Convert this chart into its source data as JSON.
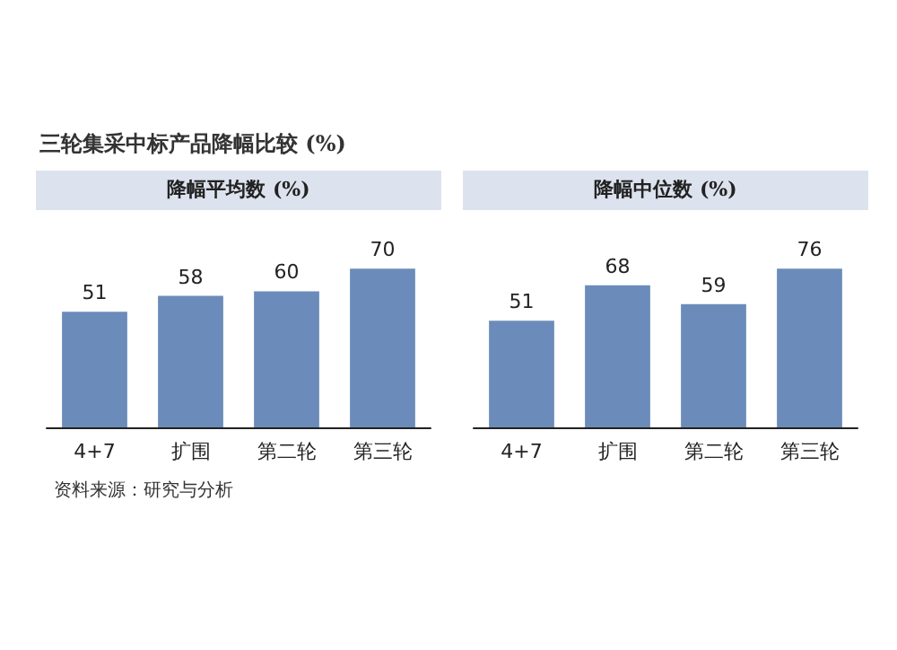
{
  "chart_data": [
    {
      "type": "bar",
      "title": "降幅平均数 (%)",
      "categories": [
        "4+7",
        "扩围",
        "第二轮",
        "第三轮"
      ],
      "values": [
        51,
        58,
        60,
        70
      ],
      "color": "#6b8cba",
      "data_labels": true,
      "annotations": [
        "三轮集采中标产品降幅比较 (%)",
        "资料来源：研究与分析"
      ]
    },
    {
      "type": "bar",
      "title": "降幅中位数 (%)",
      "categories": [
        "4+7",
        "扩围",
        "第二轮",
        "第三轮"
      ],
      "values": [
        51,
        68,
        59,
        76
      ],
      "color": "#6b8cba",
      "data_labels": true
    }
  ]
}
